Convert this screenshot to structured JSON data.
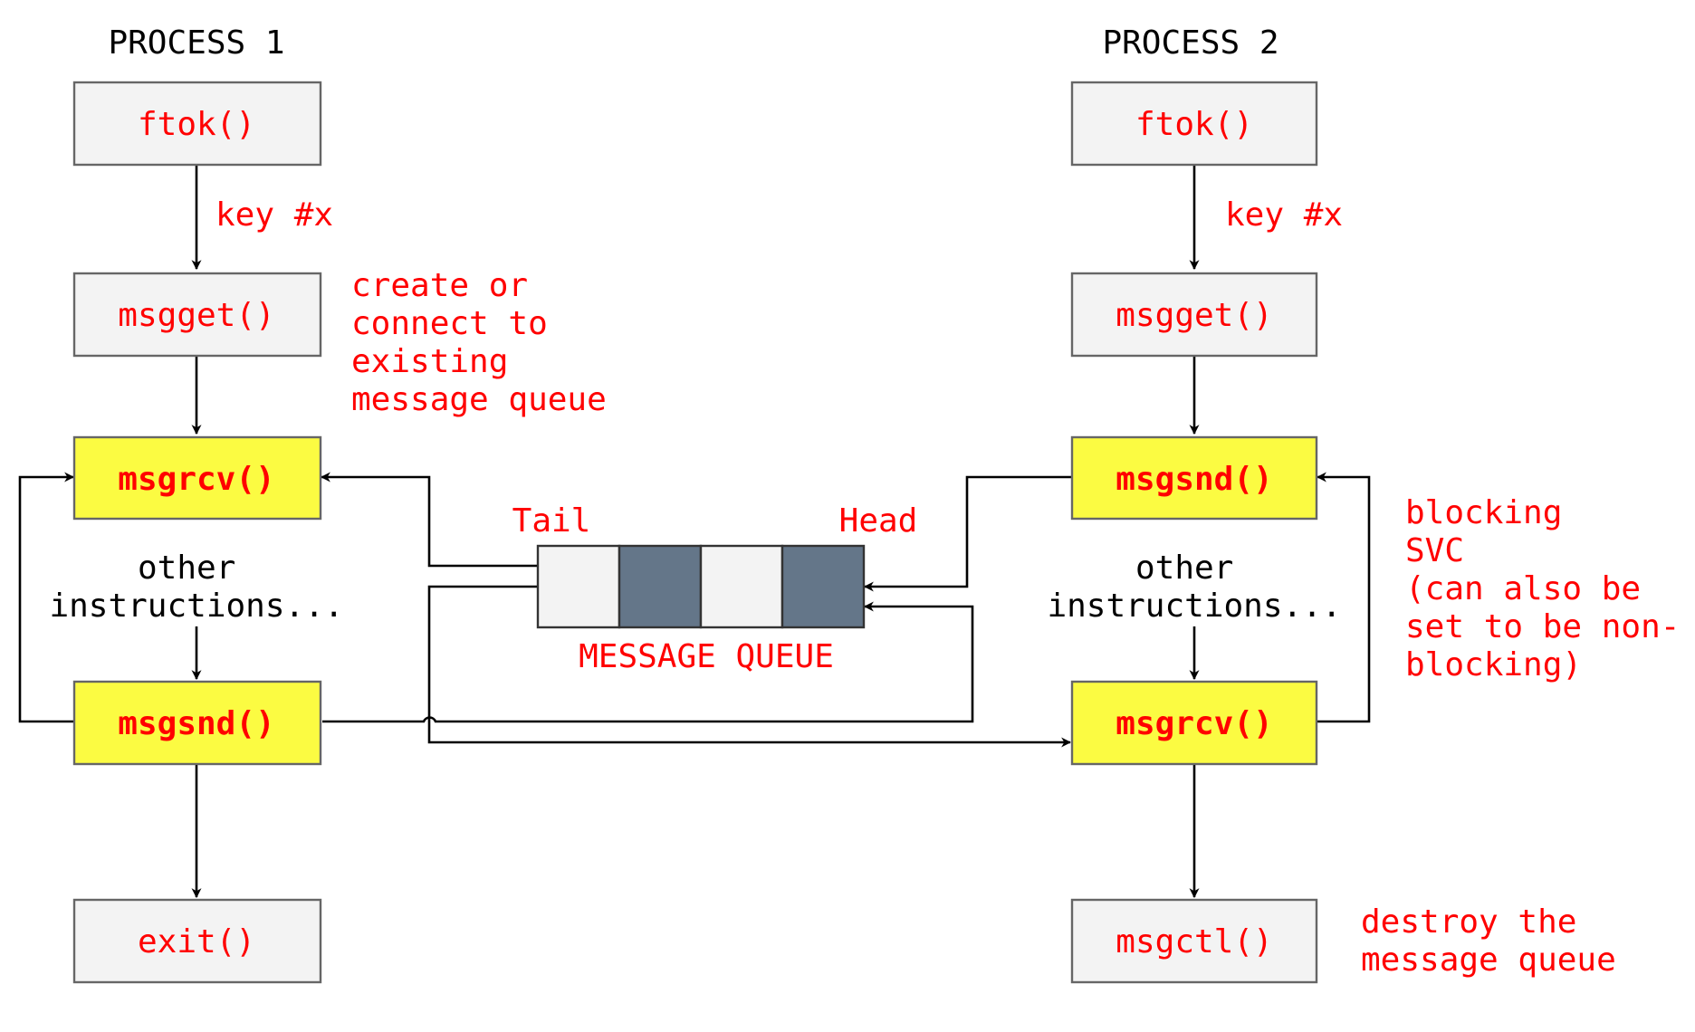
{
  "process1": {
    "title": "PROCESS 1",
    "ftok": "ftok()",
    "key_label": "key #x",
    "msgget": "msgget()",
    "msgget_note": [
      "create or",
      "connect to",
      "existing",
      "message queue"
    ],
    "msgrcv": "msgrcv()",
    "other": [
      "other",
      "instructions..."
    ],
    "msgsnd": "msgsnd()",
    "exit": "exit()"
  },
  "process2": {
    "title": "PROCESS 2",
    "ftok": "ftok()",
    "key_label": "key #x",
    "msgget": "msgget()",
    "msgsnd": "msgsnd()",
    "blocking_note": [
      "blocking",
      "SVC",
      "(can also be",
      "set to be non-",
      "blocking)"
    ],
    "other": [
      "other",
      "instructions..."
    ],
    "msgrcv": "msgrcv()",
    "msgctl": "msgctl()",
    "msgctl_note": [
      "destroy the",
      "message queue"
    ]
  },
  "queue": {
    "title": "MESSAGE QUEUE",
    "tail_label": "Tail",
    "head_label": "Head",
    "cells": [
      "light",
      "dark",
      "light",
      "dark"
    ]
  },
  "colors": {
    "label_red": "#ff0000",
    "box_gray": "#f3f3f3",
    "box_yellow": "#fbfb42",
    "queue_dark": "#647689",
    "box_border": "#666666"
  }
}
